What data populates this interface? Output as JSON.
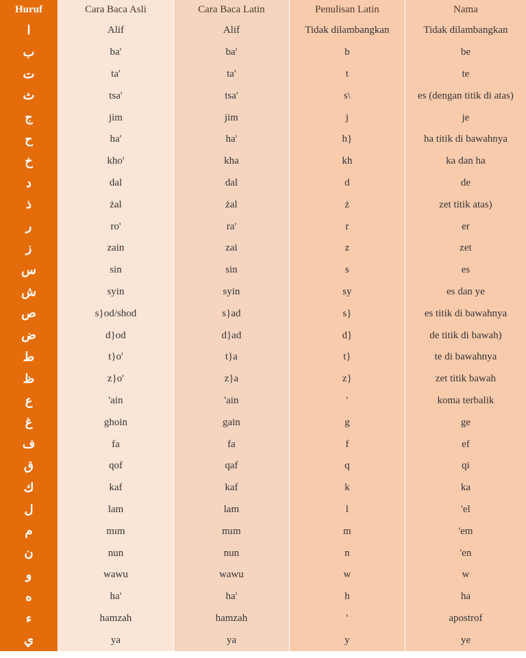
{
  "table": {
    "columns": [
      {
        "label": "Huruf",
        "headerClass": "huruf-header",
        "cellClass": "huruf-cell",
        "colClass": "col-huruf"
      },
      {
        "label": "Cara Baca Asli",
        "headerClass": "col2-header",
        "cellClass": "col2-cell",
        "colClass": "col-asli"
      },
      {
        "label": "Cara Baca Latin",
        "headerClass": "col3-header",
        "cellClass": "col3-cell",
        "colClass": "col-latin"
      },
      {
        "label": "Penulisan Latin",
        "headerClass": "col4-header",
        "cellClass": "col4-cell",
        "colClass": "col-penulisan"
      },
      {
        "label": "Nama",
        "headerClass": "col5-header",
        "cellClass": "col5-cell",
        "colClass": "col-nama"
      }
    ],
    "rows": [
      [
        "ا",
        "Alif",
        "Alif",
        "Tidak dilambangkan",
        "Tidak dilambangkan"
      ],
      [
        "ب",
        "ba'",
        "ba'",
        "b",
        "be"
      ],
      [
        "ت",
        "ta'",
        "ta'",
        "t",
        "te"
      ],
      [
        "ث",
        "tsa'",
        "tsa'",
        "s\\",
        "es (dengan titik di atas)"
      ],
      [
        "ج",
        "jim",
        "jim",
        "j",
        "je"
      ],
      [
        "ح",
        "ha'",
        "ha'",
        "h}",
        "ha titik di bawahnya"
      ],
      [
        "خ",
        "kho'",
        "kha",
        "kh",
        "ka dan ha"
      ],
      [
        "د",
        "dal",
        "dal",
        "d",
        "de"
      ],
      [
        "ذ",
        "żal",
        "żal",
        "ż",
        "zet titik atas)"
      ],
      [
        "ر",
        "ro'",
        "ra'",
        "r",
        "er"
      ],
      [
        "ز",
        "zain",
        "zai",
        "z",
        "zet"
      ],
      [
        "س",
        "sin",
        "sin",
        "s",
        "es"
      ],
      [
        "ش",
        "syin",
        "syin",
        "sy",
        "es dan ye"
      ],
      [
        "ص",
        "s}od/shod",
        "s}ad",
        "s}",
        "es titik di bawahnya"
      ],
      [
        "ض",
        "d}od",
        "d}ad",
        "d}",
        "de titik di bawah)"
      ],
      [
        "ط",
        "t}o'",
        "t}a",
        "t}",
        "te  di bawahnya"
      ],
      [
        "ظ",
        "z}o'",
        "z}a",
        "z}",
        "zet titik bawah"
      ],
      [
        "ع",
        "'ain",
        "'ain",
        "'",
        "koma terbalik"
      ],
      [
        "غ",
        "ghoin",
        "gain",
        "g",
        "ge"
      ],
      [
        "ف",
        "fa",
        "fa",
        "f",
        "ef"
      ],
      [
        "ق",
        "qof",
        "qaf",
        "q",
        "qi"
      ],
      [
        "ك",
        "kaf",
        "kaf",
        "k",
        "ka"
      ],
      [
        "ل",
        "lam",
        "lam",
        "l",
        "'el"
      ],
      [
        "م",
        "mım",
        "mım",
        "m",
        "'em"
      ],
      [
        "ن",
        "nun",
        "nun",
        "n",
        "'en"
      ],
      [
        "و",
        "wawu",
        "wawu",
        "w",
        "w"
      ],
      [
        "ه",
        "ha'",
        "ha'",
        "h",
        "ha"
      ],
      [
        "ء",
        "hamzah",
        "hamzah",
        "'",
        "apostrof"
      ],
      [
        "ي",
        "ya",
        "ya",
        "y",
        "ye"
      ]
    ],
    "colors": {
      "hurufBg": "#e46c0a",
      "hurufText": "#ffffff",
      "col2Bg": "#fbe5d6",
      "col3Bg": "#f5d5c0",
      "col4Bg": "#f8cbad",
      "col5Bg": "#f8cbad",
      "bodyText": "#333333",
      "border": "#ffffff"
    },
    "fontSizes": {
      "header": 15,
      "body": 15,
      "huruf": 18
    }
  }
}
